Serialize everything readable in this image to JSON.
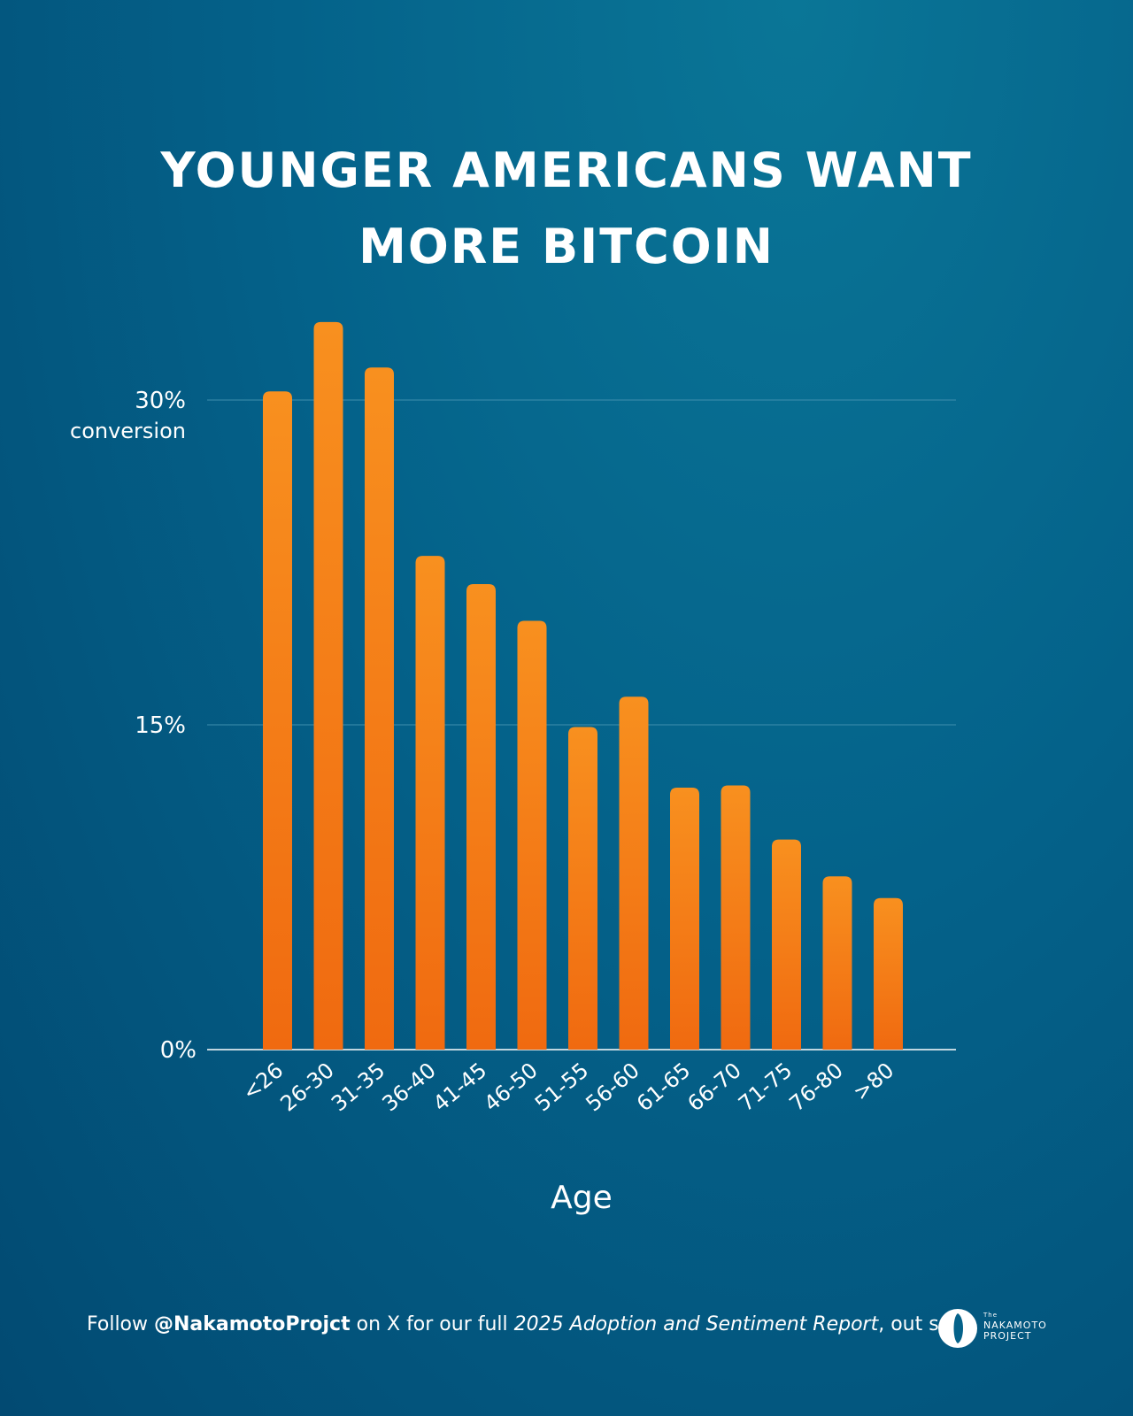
{
  "title_lines": [
    "YOUNGER AMERICANS WANT",
    "MORE BITCOIN"
  ],
  "footer": {
    "prefix": "Follow ",
    "handle": "@NakamotoProjct",
    "middle": " on X for our full ",
    "report": "2025 Adoption and Sentiment Report",
    "suffix": ", out soon"
  },
  "logo": {
    "the": "The",
    "line1": "NAKAMOTO",
    "line2": "PROJECT"
  },
  "colors": {
    "bar": "#f57a12",
    "gridline": "#3f8fae",
    "axis": "#ffffff"
  },
  "chart_data": {
    "type": "bar",
    "categories": [
      "<26",
      "26-30",
      "31-35",
      "36-40",
      "41-45",
      "46-50",
      "51-55",
      "56-60",
      "61-65",
      "66-70",
      "71-75",
      "76-80",
      ">80"
    ],
    "values": [
      30.4,
      33.6,
      31.5,
      22.8,
      21.5,
      19.8,
      14.9,
      16.3,
      12.1,
      12.2,
      9.7,
      8.0,
      7.0
    ],
    "xlabel": "Age",
    "ylabel": "conversion",
    "ylim": [
      0,
      30
    ],
    "yticks": [
      {
        "value": 0,
        "label": "0%"
      },
      {
        "value": 15,
        "label": "15%"
      },
      {
        "value": 30,
        "label": "30%"
      }
    ],
    "grid": true
  }
}
